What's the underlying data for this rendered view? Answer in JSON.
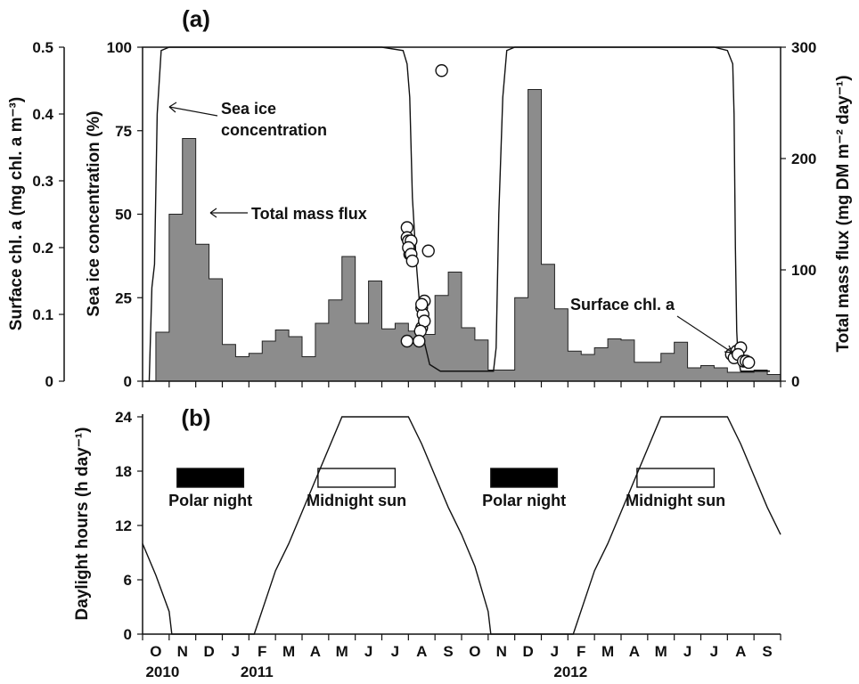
{
  "chart_data": [
    {
      "panel": "(a)",
      "type": "bar",
      "x_tick_labels": [
        "O",
        "N",
        "D",
        "J",
        "F",
        "M",
        "A",
        "M",
        "J",
        "J",
        "A",
        "S",
        "O",
        "N",
        "D",
        "J",
        "F",
        "M",
        "A",
        "M",
        "J",
        "J",
        "A",
        "S"
      ],
      "year_labels": [
        "2010",
        "2011",
        "2012"
      ],
      "ylabel_left_surface_chl": "Surface chl. a (mg chl. a m⁻³)",
      "ylabel_left_sea_ice": "Sea ice concentration (%)",
      "ylabel_right": "Total mass flux (mg DM m⁻² day⁻¹)",
      "y_left_surface_chl_ticks": [
        "0",
        "0.1",
        "0.2",
        "0.3",
        "0.4",
        "0.5"
      ],
      "y_left_sea_ice_ticks": [
        "0",
        "25",
        "50",
        "75",
        "100"
      ],
      "y_right_ticks": [
        "0",
        "100",
        "200",
        "300"
      ],
      "ylim_surface_chl": [
        0,
        0.5
      ],
      "ylim_sea_ice": [
        0,
        100
      ],
      "ylim_mass_flux": [
        0,
        300
      ],
      "annotations": [
        "Sea ice",
        "concentration",
        "Total mass flux",
        "Surface chl. a"
      ],
      "colors": {
        "flux_fill": "#8c8c8c",
        "line": "#111111",
        "marker_fill": "#ffffff"
      },
      "series": [
        {
          "kind": "step-area",
          "months": [
            0.5,
            1,
            1.5,
            2,
            2.5,
            3,
            3.5,
            4,
            4.5,
            5,
            5.5,
            6,
            6.5,
            7,
            7.5,
            8,
            8.5,
            9,
            9.5,
            10,
            10.5,
            11,
            11.5,
            12,
            12.5,
            13,
            13.5,
            14,
            14.5,
            15,
            15.5,
            16,
            16.5,
            17,
            17.5,
            18,
            18.5,
            19,
            19.5,
            20,
            20.5,
            21,
            21.5,
            22,
            22.5,
            23,
            23.5
          ],
          "values": [
            44,
            150,
            218,
            123,
            92,
            33,
            22,
            25,
            36,
            46,
            40,
            22,
            52,
            73,
            112,
            52,
            90,
            47,
            52,
            45,
            42,
            77,
            98,
            48,
            37,
            10,
            10,
            75,
            262,
            105,
            65,
            27,
            24,
            30,
            38,
            37,
            17,
            17,
            25,
            35,
            12,
            14,
            12,
            8,
            8,
            10,
            6
          ]
        },
        {
          "kind": "line",
          "months": [
            0.1,
            0.25,
            0.35,
            0.45,
            0.55,
            0.7,
            1,
            2,
            4,
            6,
            8,
            9,
            9.8,
            9.95,
            10.05,
            10.15,
            10.3,
            10.5,
            10.8,
            11.2,
            11.6,
            12,
            12.2,
            12.4,
            12.6,
            13,
            13.2,
            13.3,
            13.4,
            13.55,
            13.7,
            14,
            16,
            18,
            20,
            21.5,
            22,
            22.2,
            22.25,
            22.3,
            22.35,
            22.4,
            22.5,
            22.6,
            22.8,
            23.2,
            23.6
          ],
          "values": [
            0,
            0,
            28,
            35,
            80,
            99,
            100,
            100,
            100,
            100,
            100,
            100,
            99,
            95,
            85,
            55,
            35,
            15,
            5,
            3,
            3,
            3,
            3,
            3,
            3,
            3,
            3,
            10,
            50,
            85,
            99,
            100,
            100,
            100,
            100,
            100,
            99,
            95,
            80,
            40,
            15,
            7,
            3,
            3,
            3,
            3,
            3
          ]
        },
        {
          "kind": "scatter",
          "months": [
            9.95,
            9.95,
            10.0,
            10.05,
            10.1,
            10.05,
            10.0,
            10.1,
            10.15,
            9.95,
            10.5,
            10.6,
            10.5,
            10.55,
            10.6,
            10.45,
            10.4,
            10.5,
            10.75,
            11.25,
            22.15,
            22.25,
            22.35,
            22.5,
            22.4,
            22.6,
            22.7,
            22.8
          ],
          "values": [
            0.23,
            0.215,
            0.21,
            0.2,
            0.21,
            0.19,
            0.2,
            0.19,
            0.18,
            0.06,
            0.08,
            0.12,
            0.11,
            0.1,
            0.09,
            0.075,
            0.06,
            0.115,
            0.195,
            0.465,
            0.04,
            0.035,
            0.045,
            0.05,
            0.04,
            0.03,
            0.03,
            0.028
          ]
        }
      ]
    },
    {
      "panel": "(b)",
      "type": "line",
      "ylabel": "Daylight hours (h day⁻¹)",
      "y_ticks": [
        "0",
        "6",
        "12",
        "18",
        "24"
      ],
      "ylim": [
        0,
        24
      ],
      "x_tick_labels": [
        "O",
        "N",
        "D",
        "J",
        "F",
        "M",
        "A",
        "M",
        "J",
        "J",
        "A",
        "S",
        "O",
        "N",
        "D",
        "J",
        "F",
        "M",
        "A",
        "M",
        "J",
        "J",
        "A",
        "S"
      ],
      "year_labels": [
        "2010",
        "2011",
        "2012"
      ],
      "legend_boxes": [
        {
          "label": "Polar night",
          "fill": "#000000",
          "start_month": 1.3,
          "end_month": 3.8
        },
        {
          "label": "Midnight sun",
          "fill": "#ffffff",
          "start_month": 6.6,
          "end_month": 9.5
        },
        {
          "label": "Polar night",
          "fill": "#000000",
          "start_month": 13.1,
          "end_month": 15.6
        },
        {
          "label": "Midnight sun",
          "fill": "#ffffff",
          "start_month": 18.6,
          "end_month": 21.5
        }
      ],
      "series": [
        {
          "months": [
            0,
            0.5,
            1,
            1.1,
            2,
            3,
            4,
            4.2,
            4.6,
            5,
            5.5,
            6,
            6.5,
            7,
            7.5,
            8,
            8.5,
            9,
            9.5,
            10,
            10.5,
            11,
            11.5,
            12,
            12.5,
            13,
            13.1,
            14,
            15,
            16,
            16.2,
            16.6,
            17,
            17.5,
            18,
            18.5,
            19,
            19.5,
            20,
            20.5,
            21,
            21.5,
            22,
            22.5,
            23,
            23.5,
            24
          ],
          "values": [
            10,
            6.5,
            2.5,
            0,
            0,
            0,
            0,
            0,
            3.5,
            7,
            10,
            13.5,
            17,
            20.5,
            24,
            24,
            24,
            24,
            24,
            24,
            21,
            17.5,
            14,
            11,
            7.5,
            2.5,
            0,
            0,
            0,
            0,
            0,
            3.5,
            7,
            10,
            13.5,
            17,
            20.5,
            24,
            24,
            24,
            24,
            24,
            24,
            21,
            17.5,
            14,
            11
          ]
        }
      ]
    }
  ]
}
